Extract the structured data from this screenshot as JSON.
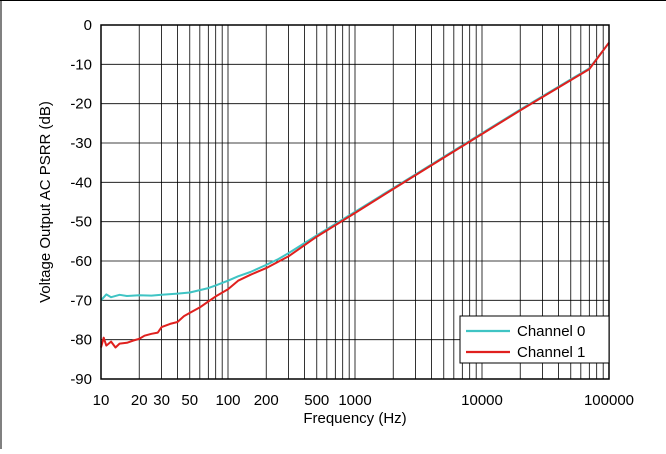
{
  "chart_data": {
    "type": "line",
    "xlabel": "Frequency (Hz)",
    "ylabel": "Voltage Output AC PSRR (dB)",
    "xscale": "log",
    "xlim": [
      10,
      100000
    ],
    "ylim": [
      -90,
      0
    ],
    "grid": true,
    "legend_position": "bottom-right",
    "x_tick_labels": [
      {
        "value": 10,
        "label": "10"
      },
      {
        "value": 20,
        "label": "20"
      },
      {
        "value": 30,
        "label": "30"
      },
      {
        "value": 50,
        "label": "50"
      },
      {
        "value": 100,
        "label": "100"
      },
      {
        "value": 200,
        "label": "200"
      },
      {
        "value": 500,
        "label": "500"
      },
      {
        "value": 1000,
        "label": "1000"
      },
      {
        "value": 10000,
        "label": "10000"
      },
      {
        "value": 100000,
        "label": "100000"
      }
    ],
    "y_tick_labels": [
      {
        "value": 0,
        "label": "0"
      },
      {
        "value": -10,
        "label": "-10"
      },
      {
        "value": -20,
        "label": "-20"
      },
      {
        "value": -30,
        "label": "-30"
      },
      {
        "value": -40,
        "label": "-40"
      },
      {
        "value": -50,
        "label": "-50"
      },
      {
        "value": -60,
        "label": "-60"
      },
      {
        "value": -70,
        "label": "-70"
      },
      {
        "value": -80,
        "label": "-80"
      },
      {
        "value": -90,
        "label": "-90"
      }
    ],
    "series": [
      {
        "name": "Channel 0",
        "color": "#3fc4c4",
        "x": [
          10,
          11,
          12,
          14,
          16,
          20,
          25,
          30,
          40,
          50,
          60,
          70,
          80,
          100,
          120,
          150,
          200,
          250,
          300,
          500,
          1000,
          2000,
          5000,
          10000,
          20000,
          50000,
          70000,
          100000
        ],
        "y": [
          -70,
          -68.5,
          -69.2,
          -68.6,
          -68.9,
          -68.7,
          -68.8,
          -68.6,
          -68.3,
          -68,
          -67.4,
          -66.9,
          -66.2,
          -65,
          -63.9,
          -62.8,
          -61,
          -59.5,
          -58,
          -53.5,
          -47.5,
          -41.5,
          -33.5,
          -27.5,
          -21.5,
          -13.8,
          -11,
          -4.5
        ]
      },
      {
        "name": "Channel 1",
        "color": "#e0201e",
        "x": [
          10,
          10.5,
          11,
          12,
          13,
          14,
          16,
          18,
          20,
          22,
          25,
          28,
          30,
          35,
          40,
          45,
          50,
          60,
          70,
          80,
          100,
          120,
          150,
          200,
          300,
          500,
          1000,
          2000,
          5000,
          10000,
          20000,
          50000,
          70000,
          100000
        ],
        "y": [
          -82,
          -79.5,
          -81.5,
          -80.5,
          -82,
          -81,
          -80.8,
          -80.2,
          -79.8,
          -79,
          -78.5,
          -78.2,
          -76.8,
          -76,
          -75.5,
          -74,
          -73.2,
          -71.8,
          -70.3,
          -69,
          -67.2,
          -65,
          -63.5,
          -61.8,
          -58.8,
          -53.8,
          -47.8,
          -41.7,
          -33.7,
          -27.7,
          -21.7,
          -14,
          -11.2,
          -4.5
        ]
      }
    ]
  }
}
